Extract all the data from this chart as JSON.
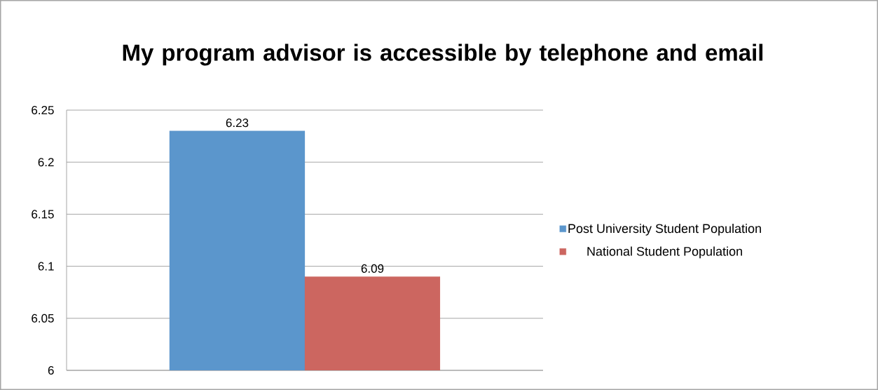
{
  "chart_data": {
    "type": "bar",
    "title": "My program advisor is accessible by telephone and email",
    "categories": [
      null
    ],
    "series": [
      {
        "name": "Post University Student Population",
        "color": "#5b96cc",
        "values": [
          6.23
        ]
      },
      {
        "name": "National Student Population",
        "color": "#cc6660",
        "values": [
          6.09
        ]
      }
    ],
    "ylim": [
      6,
      6.25
    ],
    "yticks": [
      6,
      6.05,
      6.1,
      6.15,
      6.2,
      6.25
    ],
    "grid": "y",
    "legend": "right",
    "data_labels": true
  }
}
